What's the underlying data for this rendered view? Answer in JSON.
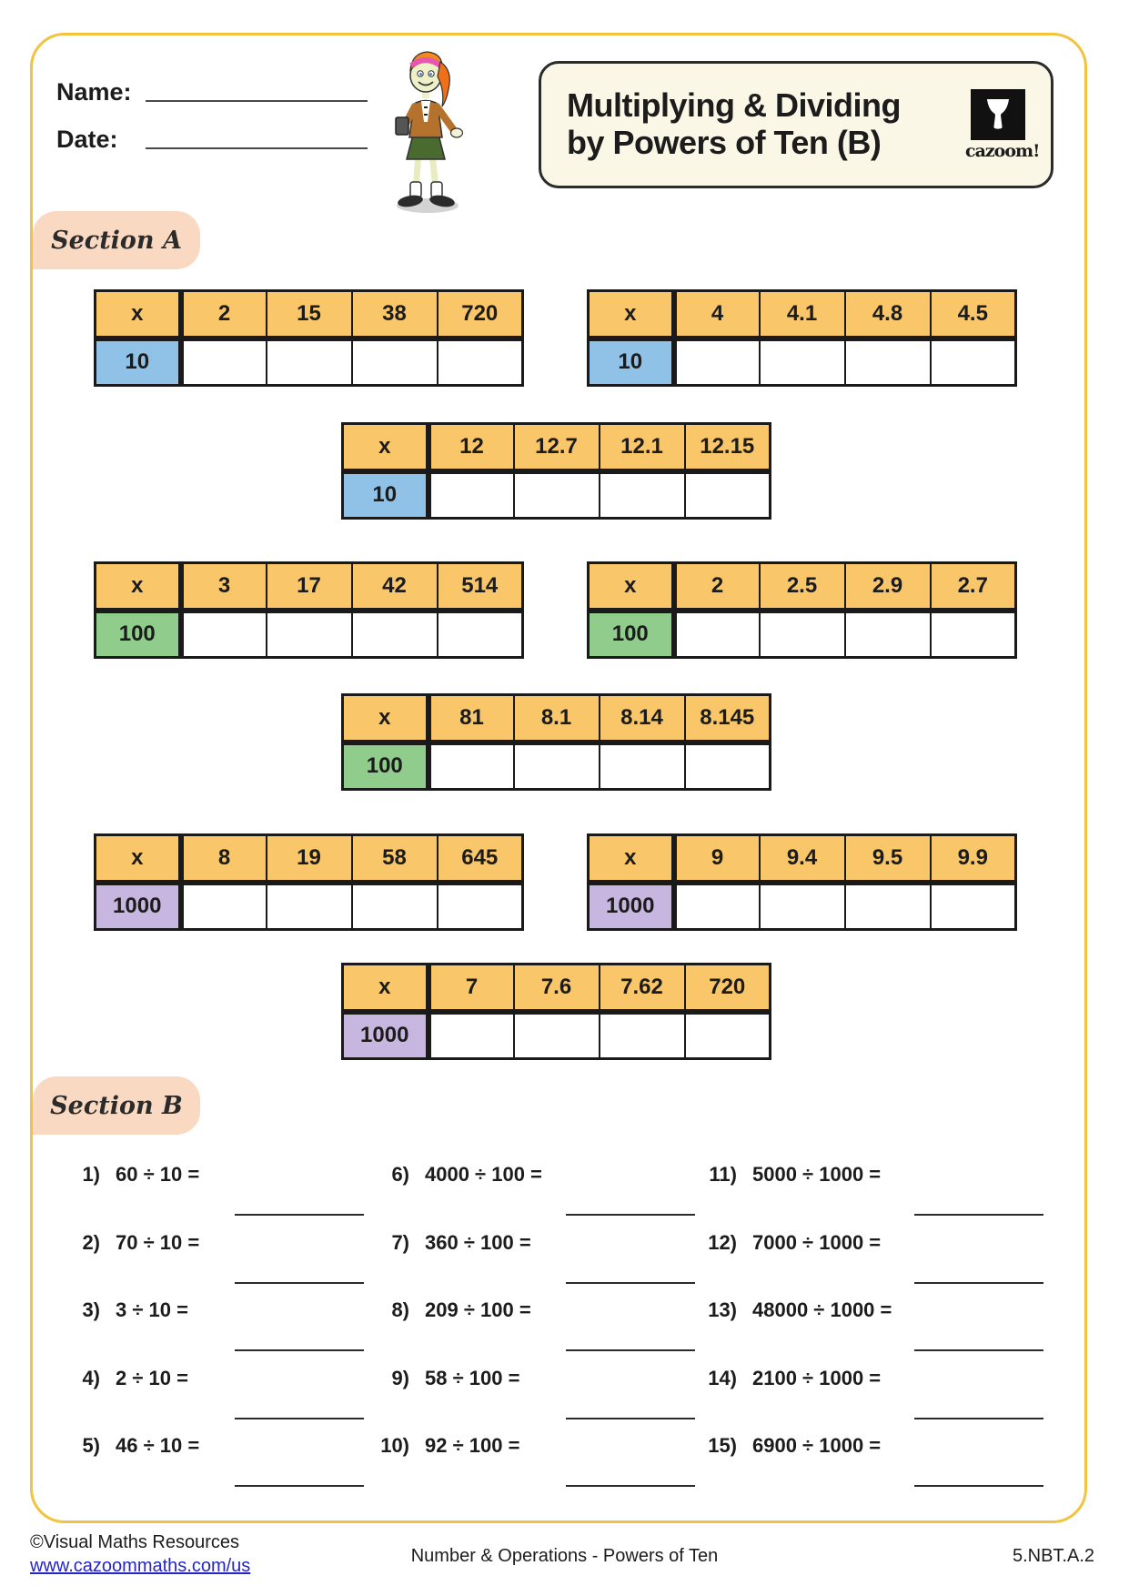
{
  "header": {
    "name_label": "Name:",
    "date_label": "Date:",
    "title_line1": "Multiplying & Dividing",
    "title_line2": "by Powers of Ten (B)",
    "logo_text": "cazoom!"
  },
  "section_a": {
    "label": "Section A",
    "operator_header": "x",
    "tables": [
      {
        "multiplier": "10",
        "color": "blue",
        "values": [
          "2",
          "15",
          "38",
          "720"
        ]
      },
      {
        "multiplier": "10",
        "color": "blue",
        "values": [
          "4",
          "4.1",
          "4.8",
          "4.5"
        ]
      },
      {
        "multiplier": "10",
        "color": "blue",
        "values": [
          "12",
          "12.7",
          "12.1",
          "12.15"
        ]
      },
      {
        "multiplier": "100",
        "color": "green",
        "values": [
          "3",
          "17",
          "42",
          "514"
        ]
      },
      {
        "multiplier": "100",
        "color": "green",
        "values": [
          "2",
          "2.5",
          "2.9",
          "2.7"
        ]
      },
      {
        "multiplier": "100",
        "color": "green",
        "values": [
          "81",
          "8.1",
          "8.14",
          "8.145"
        ]
      },
      {
        "multiplier": "1000",
        "color": "purple",
        "values": [
          "8",
          "19",
          "58",
          "645"
        ]
      },
      {
        "multiplier": "1000",
        "color": "purple",
        "values": [
          "9",
          "9.4",
          "9.5",
          "9.9"
        ]
      },
      {
        "multiplier": "1000",
        "color": "purple",
        "values": [
          "7",
          "7.6",
          "7.62",
          "720"
        ]
      }
    ]
  },
  "section_b": {
    "label": "Section B",
    "columns": [
      {
        "problems": [
          {
            "num": "1)",
            "expr": "60 ÷ 10 ="
          },
          {
            "num": "2)",
            "expr": "70 ÷ 10 ="
          },
          {
            "num": "3)",
            "expr": "3 ÷ 10 ="
          },
          {
            "num": "4)",
            "expr": "2 ÷ 10 ="
          },
          {
            "num": "5)",
            "expr": "46 ÷ 10 ="
          }
        ]
      },
      {
        "problems": [
          {
            "num": "6)",
            "expr": "4000 ÷ 100 ="
          },
          {
            "num": "7)",
            "expr": "360 ÷ 100 ="
          },
          {
            "num": "8)",
            "expr": "209 ÷ 100 ="
          },
          {
            "num": "9)",
            "expr": "58 ÷ 100 ="
          },
          {
            "num": "10)",
            "expr": "92 ÷ 100 ="
          }
        ]
      },
      {
        "problems": [
          {
            "num": "11)",
            "expr": "5000 ÷ 1000 ="
          },
          {
            "num": "12)",
            "expr": "7000 ÷ 1000 ="
          },
          {
            "num": "13)",
            "expr": "48000 ÷ 1000 ="
          },
          {
            "num": "14)",
            "expr": "2100 ÷ 1000 ="
          },
          {
            "num": "15)",
            "expr": "6900 ÷ 1000 ="
          }
        ]
      }
    ]
  },
  "footer": {
    "copyright": "©Visual Maths Resources",
    "website": "www.cazoommaths.com/us",
    "topic": "Number & Operations - Powers of Ten",
    "standard": "5.NBT.A.2"
  },
  "colors": {
    "page_border": "#F2C33E",
    "table_header": "#F9C669",
    "blue": "#90C1E7",
    "green": "#90CD8D",
    "purple": "#C7B6DF",
    "section_label_bg": "#FAD9C2",
    "link": "#2525C8"
  }
}
